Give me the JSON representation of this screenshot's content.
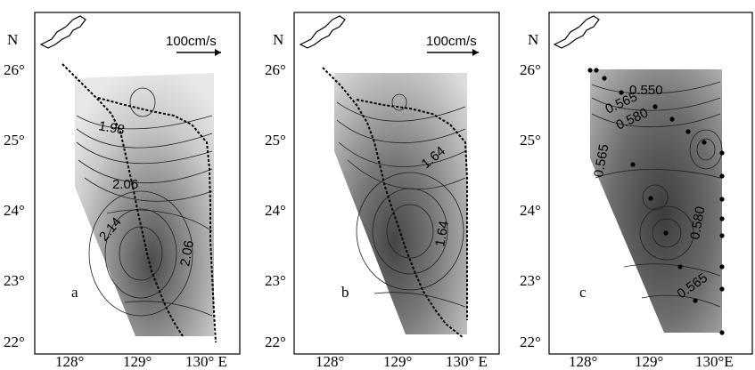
{
  "figure": {
    "panels": [
      {
        "letter": "a",
        "north_label": "N",
        "scale_label": "100cm/s",
        "lat_ticks": [
          "26°",
          "25°",
          "24°",
          "23°",
          "22°"
        ],
        "lon_ticks": [
          "128°",
          "129°",
          "130° E"
        ],
        "contour_labels": [
          "1.98",
          "2.06",
          "2.14",
          "2.06"
        ]
      },
      {
        "letter": "b",
        "north_label": "N",
        "scale_label": "100cm/s",
        "lat_ticks": [
          "26°",
          "25°",
          "24°",
          "23°",
          "22°"
        ],
        "lon_ticks": [
          "128°",
          "129°",
          "130° E"
        ],
        "contour_labels": [
          "1.64",
          "1.64"
        ]
      },
      {
        "letter": "c",
        "north_label": "N",
        "scale_label": "",
        "lat_ticks": [
          "26°",
          "25°",
          "24°",
          "23°",
          "22°"
        ],
        "lon_ticks": [
          "128°",
          "129°",
          "130°E"
        ],
        "contour_labels": [
          "0.550",
          "0.565",
          "0.580",
          "0.565",
          "0.580",
          "0.565"
        ]
      }
    ]
  }
}
